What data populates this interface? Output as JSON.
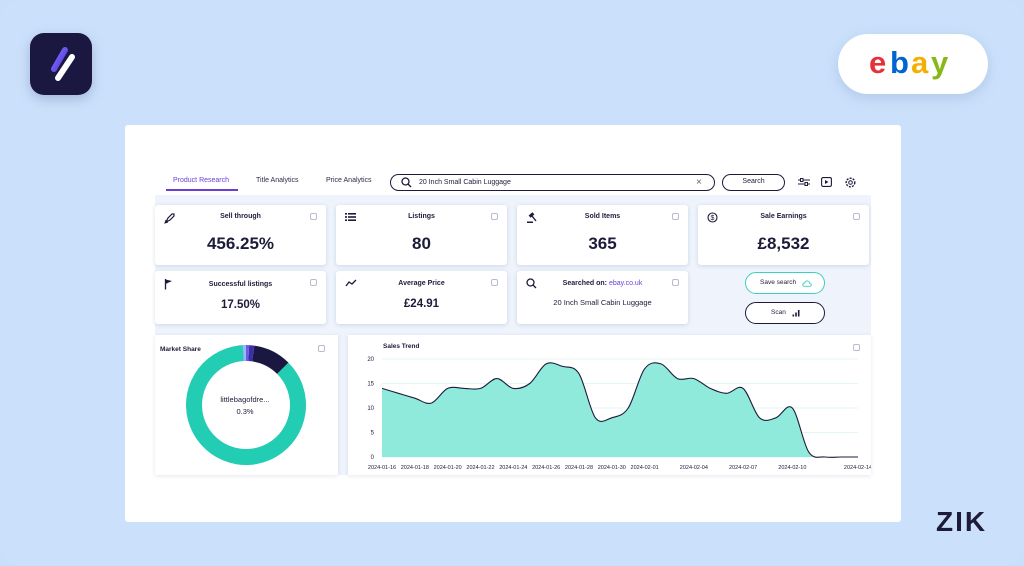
{
  "brand": {
    "app_logo_icon": "zik-slash-logo-icon",
    "ebay_logo_letters": [
      "e",
      "b",
      "a",
      "y"
    ],
    "ebay_colors": [
      "#e53238",
      "#0064d2",
      "#f5af02",
      "#86b817"
    ],
    "footer_brand": "ZIK"
  },
  "nav": {
    "tabs": [
      {
        "label": "Product Research",
        "active": true
      },
      {
        "label": "Title Analytics",
        "active": false
      },
      {
        "label": "Price Analytics",
        "active": false
      }
    ],
    "search_value": "20 Inch Small Cabin Luggage",
    "search_button": "Search",
    "tool_icons": [
      "sliders-icon",
      "video-play-icon",
      "settings-gear-icon"
    ]
  },
  "cards": {
    "sell_through": {
      "label": "Sell through",
      "value": "456.25%"
    },
    "listings": {
      "label": "Listings",
      "value": "80"
    },
    "sold_items": {
      "label": "Sold Items",
      "value": "365"
    },
    "sale_earnings": {
      "label": "Sale Earnings",
      "value": "£8,532"
    },
    "successful_listings": {
      "label": "Successful listings",
      "value": "17.50%"
    },
    "average_price": {
      "label": "Average Price",
      "value": "£24.91"
    },
    "searched_on": {
      "label": "Searched on:",
      "domain": "ebay.co.uk",
      "value": "20 Inch Small Cabin Luggage"
    }
  },
  "actions": {
    "save_search": "Save search",
    "scan": "Scan"
  },
  "market_share": {
    "title": "Market Share",
    "center_label": "littlebagofdre...",
    "center_value": "0.3%",
    "colors": [
      "#22cdb4",
      "#1a1840",
      "#3b2fa8",
      "#6b5ce0",
      "#9fb3ff"
    ]
  },
  "chart_data": {
    "type": "area",
    "title": "Sales Trend",
    "x": [
      "2024-01-16",
      "2024-01-17",
      "2024-01-18",
      "2024-01-19",
      "2024-01-20",
      "2024-01-21",
      "2024-01-22",
      "2024-01-23",
      "2024-01-24",
      "2024-01-25",
      "2024-01-26",
      "2024-01-27",
      "2024-01-28",
      "2024-01-29",
      "2024-01-30",
      "2024-01-31",
      "2024-02-01",
      "2024-02-02",
      "2024-02-03",
      "2024-02-04",
      "2024-02-05",
      "2024-02-06",
      "2024-02-07",
      "2024-02-08",
      "2024-02-09",
      "2024-02-10",
      "2024-02-11",
      "2024-02-12",
      "2024-02-13",
      "2024-02-14"
    ],
    "x_tick_labels": [
      "2024-01-16",
      "2024-01-18",
      "2024-01-20",
      "2024-01-22",
      "2024-01-24",
      "2024-01-26",
      "2024-01-28",
      "2024-01-30",
      "2024-02-01",
      "2024-02-04",
      "2024-02-07",
      "2024-02-10",
      "2024-02-14"
    ],
    "values": [
      14,
      13,
      12,
      11,
      14,
      14,
      14,
      16,
      14,
      15,
      19,
      18.5,
      17,
      8,
      8,
      10,
      18,
      19,
      16,
      16,
      14,
      13,
      14,
      8,
      8,
      10,
      1,
      0,
      0,
      0
    ],
    "ylim": [
      0,
      20
    ],
    "y_ticks": [
      0,
      5,
      10,
      15,
      20
    ],
    "fill_color": "#8feadb",
    "line_color": "#1c1c3a",
    "grid": true
  }
}
